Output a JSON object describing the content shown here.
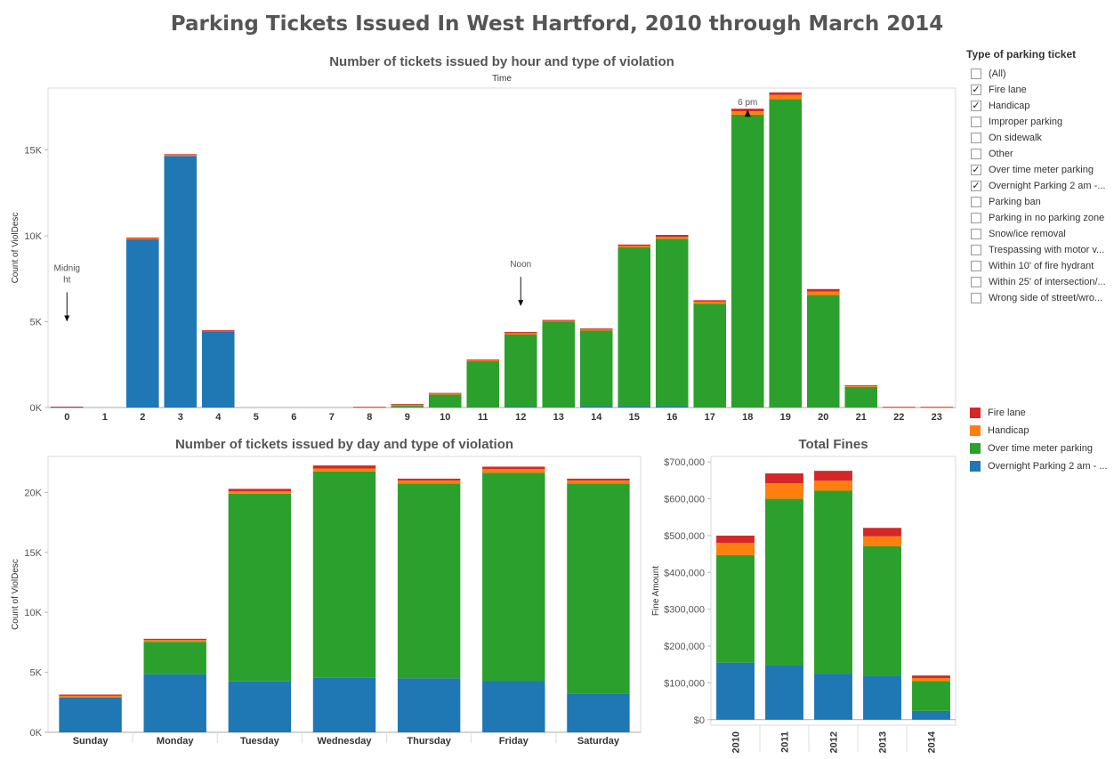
{
  "dashboard_title": "Parking Tickets Issued In West Hartford, 2010 through March 2014",
  "filter": {
    "title": "Type of parking ticket",
    "items": [
      {
        "label": "(All)",
        "checked": false
      },
      {
        "label": "Fire lane",
        "checked": true
      },
      {
        "label": "Handicap",
        "checked": true
      },
      {
        "label": "Improper parking",
        "checked": false
      },
      {
        "label": "On sidewalk",
        "checked": false
      },
      {
        "label": "Other",
        "checked": false
      },
      {
        "label": "Over time meter parking",
        "checked": true
      },
      {
        "label": "Overnight Parking 2 am -...",
        "checked": true
      },
      {
        "label": "Parking ban",
        "checked": false
      },
      {
        "label": "Parking in no parking zone",
        "checked": false
      },
      {
        "label": "Snow/ice removal",
        "checked": false
      },
      {
        "label": "Trespassing with motor v...",
        "checked": false
      },
      {
        "label": "Within 10' of fire hydrant",
        "checked": false
      },
      {
        "label": "Within 25' of intersection/...",
        "checked": false
      },
      {
        "label": "Wrong side of street/wro...",
        "checked": false
      }
    ]
  },
  "legend": [
    {
      "label": "Fire lane",
      "color": "#d62728"
    },
    {
      "label": "Handicap",
      "color": "#ff7f0e"
    },
    {
      "label": "Over time meter parking",
      "color": "#2ca02c"
    },
    {
      "label": "Overnight Parking 2 am - ...",
      "color": "#1f77b4"
    }
  ],
  "chart_data": [
    {
      "type": "bar",
      "stacked": true,
      "title": "Number of tickets issued by hour and type of violation",
      "column_header": "Time",
      "ylabel": "Count of ViolDesc",
      "ylim": [
        0,
        18600
      ],
      "yticks": [
        0,
        5000,
        10000,
        15000
      ],
      "ytick_labels": [
        "0K",
        "5K",
        "10K",
        "15K"
      ],
      "categories": [
        "0",
        "1",
        "2",
        "3",
        "4",
        "5",
        "6",
        "7",
        "8",
        "9",
        "10",
        "11",
        "12",
        "13",
        "14",
        "15",
        "16",
        "17",
        "18",
        "19",
        "20",
        "21",
        "22",
        "23"
      ],
      "series": [
        {
          "name": "Overnight Parking 2 am - ...",
          "color": "#1f77b4",
          "values": [
            30,
            0,
            9800,
            14650,
            4450,
            0,
            0,
            0,
            0,
            0,
            0,
            0,
            50,
            0,
            80,
            80,
            80,
            0,
            0,
            0,
            0,
            0,
            0,
            0
          ]
        },
        {
          "name": "Over time meter parking",
          "color": "#2ca02c",
          "values": [
            0,
            0,
            0,
            0,
            0,
            0,
            0,
            0,
            0,
            100,
            750,
            2700,
            4200,
            5000,
            4400,
            9250,
            9750,
            6050,
            17050,
            17950,
            6550,
            1200,
            0,
            0
          ]
        },
        {
          "name": "Handicap",
          "color": "#ff7f0e",
          "values": [
            0,
            0,
            50,
            50,
            30,
            0,
            0,
            0,
            20,
            50,
            60,
            50,
            80,
            50,
            60,
            80,
            100,
            120,
            200,
            250,
            200,
            50,
            20,
            20
          ]
        },
        {
          "name": "Fire lane",
          "color": "#d62728",
          "values": [
            20,
            0,
            50,
            50,
            20,
            0,
            0,
            0,
            20,
            50,
            40,
            50,
            70,
            50,
            60,
            80,
            120,
            80,
            150,
            150,
            150,
            50,
            20,
            20
          ]
        }
      ],
      "annotations": [
        {
          "text": "Midnight",
          "category": "0",
          "value": 5000,
          "arrow": "down"
        },
        {
          "text": "Noon",
          "category": "12",
          "value": 5900,
          "arrow": "down"
        },
        {
          "text": "6 pm",
          "category": "18",
          "value": 17500,
          "arrow": "up"
        }
      ]
    },
    {
      "type": "bar",
      "stacked": true,
      "title": "Number of tickets issued by day and type of violation",
      "ylabel": "Count of ViolDesc",
      "ylim": [
        0,
        23000
      ],
      "yticks": [
        0,
        5000,
        10000,
        15000,
        20000
      ],
      "ytick_labels": [
        "0K",
        "5K",
        "10K",
        "15K",
        "20K"
      ],
      "categories": [
        "Sunday",
        "Monday",
        "Tuesday",
        "Wednesday",
        "Thursday",
        "Friday",
        "Saturday"
      ],
      "series": [
        {
          "name": "Overnight Parking 2 am - ...",
          "color": "#1f77b4",
          "values": [
            2900,
            4850,
            4250,
            4550,
            4500,
            4300,
            3250
          ]
        },
        {
          "name": "Over time meter parking",
          "color": "#2ca02c",
          "values": [
            0,
            2700,
            15650,
            17200,
            16250,
            17350,
            17500
          ]
        },
        {
          "name": "Handicap",
          "color": "#ff7f0e",
          "values": [
            150,
            150,
            200,
            250,
            250,
            300,
            250
          ]
        },
        {
          "name": "Fire lane",
          "color": "#d62728",
          "values": [
            100,
            100,
            200,
            250,
            150,
            200,
            150
          ]
        }
      ]
    },
    {
      "type": "bar",
      "stacked": true,
      "title": "Total Fines",
      "ylabel": "Fine Amount",
      "ylim": [
        -15000,
        715000
      ],
      "yticks": [
        0,
        100000,
        200000,
        300000,
        400000,
        500000,
        600000,
        700000
      ],
      "ytick_labels": [
        "$0",
        "$100,000",
        "$200,000",
        "$300,000",
        "$400,000",
        "$500,000",
        "$600,000",
        "$700,000"
      ],
      "categories": [
        "2010",
        "2011",
        "2012",
        "2013",
        "2014"
      ],
      "series": [
        {
          "name": "Overnight Parking 2 am - ...",
          "color": "#1f77b4",
          "values": [
            155000,
            147000,
            125000,
            119000,
            24000
          ]
        },
        {
          "name": "Over time meter parking",
          "color": "#2ca02c",
          "values": [
            292000,
            453000,
            497000,
            352000,
            81000
          ]
        },
        {
          "name": "Handicap",
          "color": "#ff7f0e",
          "values": [
            33000,
            42000,
            27000,
            27000,
            8000
          ]
        },
        {
          "name": "Fire lane",
          "color": "#d62728",
          "values": [
            20000,
            27000,
            27000,
            23000,
            7000
          ]
        }
      ]
    }
  ]
}
